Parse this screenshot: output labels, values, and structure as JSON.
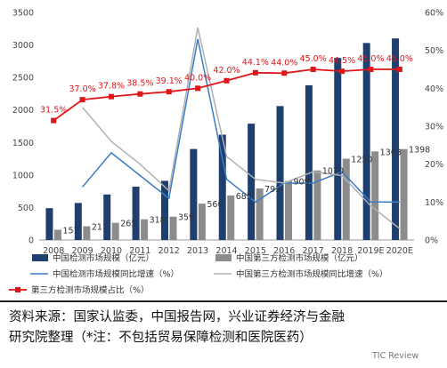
{
  "chart_data": {
    "type": "bar",
    "categories": [
      "2008",
      "2009",
      "2010",
      "2011",
      "2012",
      "2013",
      "2014",
      "2015",
      "2016",
      "2017",
      "2018",
      "2019E",
      "2020E"
    ],
    "series": [
      {
        "name": "中国检测市场规模（亿元）",
        "kind": "bar",
        "axis": "left",
        "color": "#1f3f6e",
        "values": [
          490,
          570,
          700,
          820,
          910,
          1400,
          1620,
          1790,
          2060,
          2380,
          2800,
          3030,
          3100
        ]
      },
      {
        "name": "中国第三方检测市场规模（亿元）",
        "kind": "bar",
        "axis": "left",
        "color": "#8c8c8c",
        "values": [
          157,
          211,
          265,
          318,
          359,
          560,
          685,
          793,
          909,
          1070,
          1250,
          1363,
          1398
        ],
        "labels": [
          "157",
          "211",
          "265",
          "318",
          "359",
          "560",
          "685",
          "793",
          "909",
          "1070",
          "1250",
          "1363",
          "1398"
        ]
      },
      {
        "name": "中国检测市场规模同比增速（%）",
        "kind": "line",
        "axis": "right",
        "color": "#3a7cc6",
        "values": [
          null,
          14,
          23,
          17,
          11,
          53,
          16,
          10,
          15,
          15,
          18,
          10,
          10
        ]
      },
      {
        "name": "中国第三方检测市场规模同比增速（%）",
        "kind": "line",
        "axis": "right",
        "color": "#b0b0b0",
        "values": [
          null,
          35,
          26,
          20,
          13,
          56,
          22,
          16,
          15,
          18,
          17,
          9,
          3
        ]
      },
      {
        "name": "第三方检测市场规模占比（%）",
        "kind": "line-marker",
        "axis": "right",
        "color": "#e0151a",
        "values": [
          31.5,
          37.0,
          37.8,
          38.5,
          39.1,
          40.0,
          42.0,
          44.1,
          44.0,
          45.0,
          44.5,
          45.0,
          45.0
        ],
        "labels": [
          "31.5%",
          "37.0%",
          "37.8%",
          "38.5%",
          "39.1%",
          "40.0%",
          "42.0%",
          "44.1%",
          "44.0%",
          "45.0%",
          "44.5%",
          "45.0%",
          "45.0%"
        ]
      }
    ],
    "ylim_left": [
      0,
      3500
    ],
    "yticks_left": [
      "0",
      "500",
      "1000",
      "1500",
      "2000",
      "2500",
      "3000",
      "3500"
    ],
    "ylim_right": [
      0,
      60
    ],
    "yticks_right": [
      "0%",
      "10%",
      "20%",
      "30%",
      "40%",
      "50%",
      "60%"
    ],
    "grid": false,
    "legend_position": "bottom"
  },
  "source_note": {
    "line1": "资料来源：国家认监委，中国报告网，兴业证券经济与金融",
    "line2": "研究院整理（*注：不包括贸易保障检测和医院医药）"
  },
  "watermark": "TIC Review"
}
